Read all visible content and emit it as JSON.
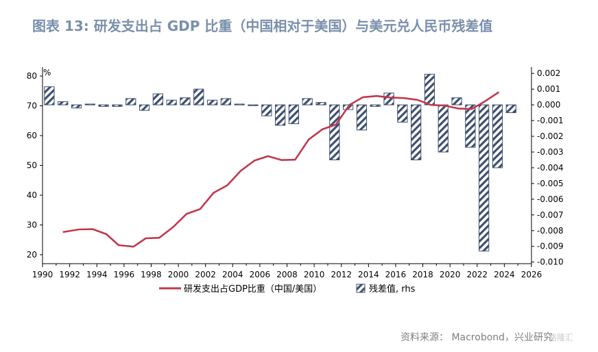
{
  "title": "图表 13:  研发支出占 GDP 比重（中国相对于美国）与美元兑人民币残差值",
  "source": "资料来源：  Macrobond，兴业研究",
  "watermark": "格隆汇",
  "colors": {
    "line": "#c0394b",
    "bar": "#3d4f6e",
    "title": "#7a8fab"
  },
  "chart_data": {
    "type": "bar+line",
    "x_ticks": [
      1990,
      1992,
      1994,
      1996,
      1998,
      2000,
      2002,
      2004,
      2006,
      2008,
      2010,
      2012,
      2014,
      2016,
      2018,
      2020,
      2022,
      2024,
      2026
    ],
    "xlim": [
      1990,
      2026
    ],
    "left_axis": {
      "unit": "%",
      "ylim": [
        17,
        83
      ],
      "ticks": [
        20,
        30,
        40,
        50,
        60,
        70,
        80
      ]
    },
    "right_axis": {
      "ylim": [
        -0.0101,
        0.0024
      ],
      "ticks": [
        "0.002",
        "0.001",
        "0.000",
        "-0.001",
        "-0.002",
        "-0.003",
        "-0.004",
        "-0.005",
        "-0.006",
        "-0.007",
        "-0.008",
        "-0.009",
        "-0.010"
      ]
    },
    "series": [
      {
        "name": "研发支出占GDP比重（中国/美国）",
        "type": "line",
        "axis": "left",
        "x": [
          1991.5,
          1992.7,
          1993.7,
          1994.7,
          1995.6,
          1996.7,
          1997.6,
          1998.6,
          1999.6,
          2000.6,
          2001.6,
          2002.6,
          2003.6,
          2004.6,
          2005.6,
          2006.6,
          2007.6,
          2008.6,
          2009.6,
          2010.6,
          2011.6,
          2012.6,
          2013.6,
          2014.6,
          2015.6,
          2016.6,
          2017.6,
          2018.6,
          2019.6,
          2020.6,
          2021.6,
          2022.6,
          2023.6
        ],
        "values": [
          27.6,
          28.5,
          28.6,
          26.9,
          23.2,
          22.7,
          25.5,
          25.7,
          29.2,
          33.7,
          35.3,
          40.8,
          43.3,
          48.2,
          51.6,
          53.1,
          51.8,
          51.9,
          58.7,
          62.1,
          63.7,
          70.3,
          72.9,
          73.3,
          72.8,
          72.6,
          72.0,
          70.3,
          70.1,
          69.1,
          68.9,
          71.6,
          74.6
        ]
      },
      {
        "name": "残差值, rhs",
        "type": "bar",
        "axis": "right",
        "x": [
          1990.5,
          1991.5,
          1992.5,
          1993.5,
          1994.5,
          1995.5,
          1996.5,
          1997.5,
          1998.5,
          1999.5,
          2000.5,
          2001.5,
          2002.5,
          2003.5,
          2004.5,
          2005.5,
          2006.5,
          2007.5,
          2008.5,
          2009.5,
          2010.5,
          2011.5,
          2012.5,
          2013.5,
          2014.5,
          2015.5,
          2016.5,
          2017.5,
          2018.5,
          2019.5,
          2020.5,
          2021.5,
          2022.5,
          2023.5,
          2024.5
        ],
        "values": [
          0.00115,
          0.0002,
          -0.0002,
          5e-05,
          -0.0001,
          -0.0001,
          0.0004,
          -0.00035,
          0.0007,
          0.0003,
          0.00045,
          0.001,
          0.0003,
          0.0004,
          5e-05,
          0.0,
          -0.0007,
          -0.0013,
          -0.0012,
          0.0004,
          0.00015,
          -0.0035,
          -0.0003,
          -0.0016,
          -0.0001,
          0.00075,
          -0.0011,
          -0.0035,
          0.00195,
          -0.003,
          0.00045,
          -0.0027,
          -0.0093,
          -0.004,
          -0.0005
        ]
      }
    ],
    "legend": [
      "研发支出占GDP比重（中国/美国）",
      "残差值, rhs"
    ],
    "legend_position": "bottom",
    "grid": false
  }
}
